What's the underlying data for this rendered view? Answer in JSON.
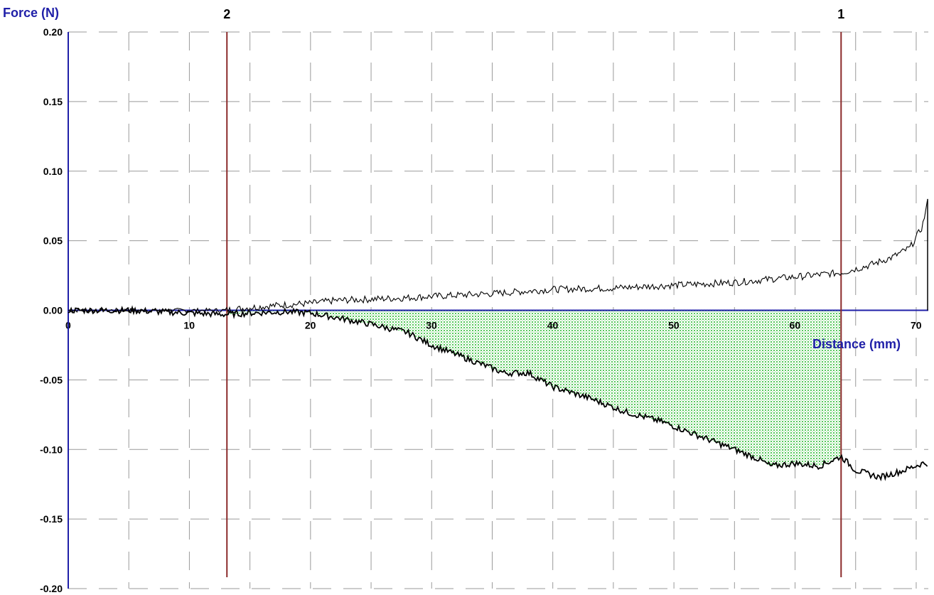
{
  "chart_data": {
    "type": "line",
    "ylabel": "Force (N)",
    "xlabel": "Distance (mm)",
    "xlim": [
      0,
      71
    ],
    "ylim": [
      -0.2,
      0.2
    ],
    "x_ticks": [
      0,
      10,
      20,
      30,
      40,
      50,
      60,
      70
    ],
    "x_tick_labels": [
      "0",
      "10",
      "20",
      "30",
      "40",
      "50",
      "60",
      "70"
    ],
    "y_ticks": [
      0.2,
      0.15,
      0.1,
      0.05,
      0.0,
      -0.05,
      -0.1,
      -0.15,
      -0.2
    ],
    "y_tick_labels": [
      "0.20",
      "0.15",
      "0.10",
      "0.05",
      "0.00",
      "-0.05",
      "-0.10",
      "-0.15",
      "-0.20"
    ],
    "grid": "dashed",
    "markers": [
      {
        "label": "2",
        "x": 13.1
      },
      {
        "label": "1",
        "x": 63.8
      }
    ],
    "shaded_region": {
      "x_from": 13.1,
      "x_to": 63.8,
      "between": "zero-line and lower curve"
    },
    "series": [
      {
        "x": [
          0,
          5,
          10,
          13,
          15,
          18,
          20,
          22,
          25,
          28,
          30,
          35,
          40,
          45,
          50,
          55,
          60,
          63.8,
          66,
          68,
          69.5,
          70.5,
          71
        ],
        "values": [
          0.0,
          0.0,
          0.0,
          0.0,
          0.002,
          0.004,
          0.005,
          0.007,
          0.008,
          0.009,
          0.01,
          0.012,
          0.015,
          0.016,
          0.018,
          0.02,
          0.024,
          0.027,
          0.032,
          0.038,
          0.045,
          0.06,
          0.08
        ]
      },
      {
        "x": [
          0,
          5,
          10,
          13,
          15,
          18,
          20,
          22,
          25,
          28,
          30,
          33,
          36,
          38,
          40,
          43,
          46,
          49,
          52,
          55,
          57,
          58,
          60,
          62,
          63.8,
          65,
          67,
          69,
          70.5,
          71
        ],
        "values": [
          0.0,
          0.0,
          -0.002,
          -0.003,
          -0.002,
          -0.001,
          -0.002,
          -0.005,
          -0.01,
          -0.016,
          -0.025,
          -0.035,
          -0.045,
          -0.045,
          -0.055,
          -0.063,
          -0.073,
          -0.08,
          -0.09,
          -0.1,
          -0.107,
          -0.112,
          -0.11,
          -0.112,
          -0.105,
          -0.115,
          -0.12,
          -0.115,
          -0.11,
          -0.11
        ]
      }
    ]
  }
}
